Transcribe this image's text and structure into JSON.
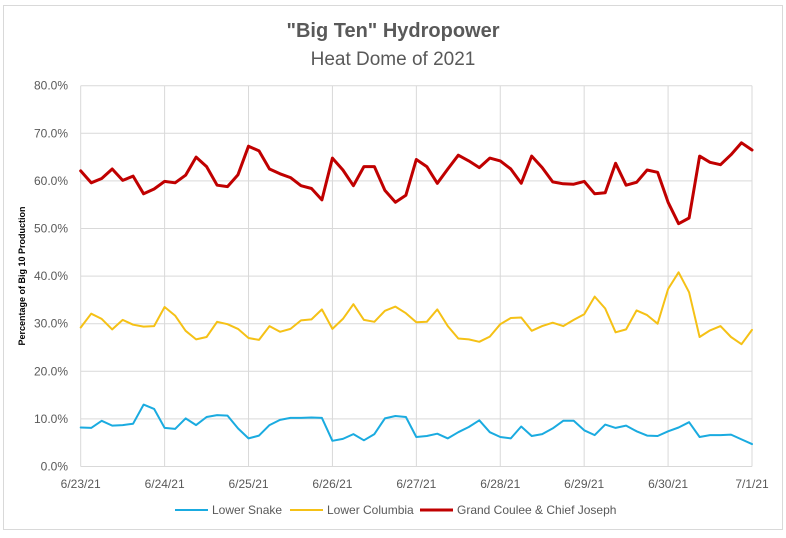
{
  "chart_data": {
    "type": "line",
    "title": "\"Big Ten\" Hydropower",
    "subtitle": "Heat Dome of 2021",
    "xlabel": "",
    "ylabel": "Percentage of Big 10 Production",
    "ylim": [
      0,
      80
    ],
    "yticks": [
      "0.0%",
      "10.0%",
      "20.0%",
      "30.0%",
      "40.0%",
      "50.0%",
      "60.0%",
      "70.0%",
      "80.0%"
    ],
    "xticks": [
      "6/23/21",
      "6/24/21",
      "6/25/21",
      "6/26/21",
      "6/27/21",
      "6/28/21",
      "6/29/21",
      "6/30/21",
      "7/1/21"
    ],
    "xlim": [
      "2021-06-23 00:00",
      "2021-07-01 00:00"
    ],
    "grid": true,
    "legend": "bottom",
    "x": [
      "2021-06-23 00:00",
      "2021-06-23 03:00",
      "2021-06-23 06:00",
      "2021-06-23 09:00",
      "2021-06-23 12:00",
      "2021-06-23 15:00",
      "2021-06-23 18:00",
      "2021-06-23 21:00",
      "2021-06-24 00:00",
      "2021-06-24 03:00",
      "2021-06-24 06:00",
      "2021-06-24 09:00",
      "2021-06-24 12:00",
      "2021-06-24 15:00",
      "2021-06-24 18:00",
      "2021-06-24 21:00",
      "2021-06-25 00:00",
      "2021-06-25 03:00",
      "2021-06-25 06:00",
      "2021-06-25 09:00",
      "2021-06-25 12:00",
      "2021-06-25 15:00",
      "2021-06-25 18:00",
      "2021-06-25 21:00",
      "2021-06-26 00:00",
      "2021-06-26 03:00",
      "2021-06-26 06:00",
      "2021-06-26 09:00",
      "2021-06-26 12:00",
      "2021-06-26 15:00",
      "2021-06-26 18:00",
      "2021-06-26 21:00",
      "2021-06-27 00:00",
      "2021-06-27 03:00",
      "2021-06-27 06:00",
      "2021-06-27 09:00",
      "2021-06-27 12:00",
      "2021-06-27 15:00",
      "2021-06-27 18:00",
      "2021-06-27 21:00",
      "2021-06-28 00:00",
      "2021-06-28 03:00",
      "2021-06-28 06:00",
      "2021-06-28 09:00",
      "2021-06-28 12:00",
      "2021-06-28 15:00",
      "2021-06-28 18:00",
      "2021-06-28 21:00",
      "2021-06-29 00:00",
      "2021-06-29 03:00",
      "2021-06-29 06:00",
      "2021-06-29 09:00",
      "2021-06-29 12:00",
      "2021-06-29 15:00",
      "2021-06-29 18:00",
      "2021-06-29 21:00",
      "2021-06-30 00:00",
      "2021-06-30 03:00",
      "2021-06-30 06:00",
      "2021-06-30 09:00",
      "2021-06-30 12:00",
      "2021-06-30 15:00",
      "2021-06-30 18:00",
      "2021-06-30 21:00",
      "2021-07-01 00:00"
    ],
    "series": [
      {
        "name": "Lower Snake",
        "color": "#1AABE0",
        "width": 2,
        "values": [
          8.2,
          8.1,
          9.6,
          8.6,
          8.7,
          9.0,
          13.0,
          12.1,
          8.1,
          7.9,
          10.1,
          8.7,
          10.4,
          10.8,
          10.7,
          8.0,
          5.9,
          6.5,
          8.7,
          9.8,
          10.2,
          10.2,
          10.3,
          10.2,
          5.4,
          5.8,
          6.8,
          5.5,
          6.8,
          10.1,
          10.6,
          10.4,
          6.2,
          6.4,
          6.9,
          5.9,
          7.2,
          8.3,
          9.7,
          7.2,
          6.2,
          5.9,
          8.4,
          6.4,
          6.8,
          8.0,
          9.6,
          9.6,
          7.6,
          6.6,
          8.8,
          8.1,
          8.6,
          7.4,
          6.5,
          6.4,
          7.4,
          8.2,
          9.3,
          6.2,
          6.6,
          6.6,
          6.7,
          5.7,
          4.7
        ]
      },
      {
        "name": "Lower Columbia",
        "color": "#F5C116",
        "width": 2,
        "values": [
          29.2,
          32.1,
          31.0,
          28.8,
          30.8,
          29.8,
          29.4,
          29.5,
          33.5,
          31.7,
          28.5,
          26.7,
          27.2,
          30.4,
          29.9,
          28.9,
          27.0,
          26.6,
          29.5,
          28.3,
          28.9,
          30.7,
          30.9,
          33.0,
          28.9,
          31.0,
          34.1,
          30.8,
          30.4,
          32.7,
          33.6,
          32.2,
          30.3,
          30.4,
          33.0,
          29.5,
          26.9,
          26.7,
          26.2,
          27.3,
          29.9,
          31.2,
          31.3,
          28.5,
          29.5,
          30.2,
          29.5,
          30.8,
          32.0,
          35.7,
          33.2,
          28.2,
          28.8,
          32.8,
          31.8,
          30.0,
          37.3,
          40.8,
          36.6,
          27.2,
          28.6,
          29.5,
          27.2,
          25.7,
          28.7
        ]
      },
      {
        "name": "Grand Coulee & Chief Joseph",
        "color": "#C00000",
        "width": 3,
        "values": [
          62.1,
          59.6,
          60.5,
          62.5,
          60.1,
          61.0,
          57.3,
          58.3,
          59.9,
          59.6,
          61.2,
          65.0,
          63.0,
          59.1,
          58.8,
          61.3,
          67.3,
          66.3,
          62.5,
          61.5,
          60.7,
          59.0,
          58.4,
          56.0,
          64.8,
          62.3,
          59.0,
          63.0,
          63.0,
          58.0,
          55.5,
          57.0,
          64.5,
          63.0,
          59.5,
          62.5,
          65.4,
          64.2,
          62.8,
          64.8,
          64.2,
          62.5,
          59.5,
          65.2,
          62.8,
          59.8,
          59.4,
          59.3,
          59.9,
          57.3,
          57.5,
          63.7,
          59.1,
          59.7,
          62.3,
          61.8,
          55.5,
          51.0,
          52.2,
          65.2,
          63.9,
          63.4,
          65.5,
          68.0,
          66.5
        ]
      }
    ]
  }
}
